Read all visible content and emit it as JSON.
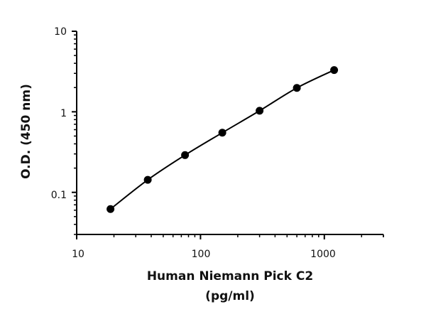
{
  "chart_data": {
    "type": "scatter",
    "x_scale": "log",
    "y_scale": "log",
    "xlim": [
      10,
      3000
    ],
    "ylim": [
      0.03,
      10
    ],
    "x_ticks": [
      "10",
      "100",
      "1000"
    ],
    "y_ticks": [
      "0.1",
      "1",
      "10"
    ],
    "xlabel_line1": "Human  Niemann  Pick C2",
    "xlabel_line2": "(pg/ml)",
    "ylabel": "O.D. (450 nm)",
    "grid": false,
    "series": [
      {
        "x": [
          18.75,
          37.5,
          75,
          150,
          300,
          600,
          1200
        ],
        "y": [
          0.062,
          0.143,
          0.29,
          0.55,
          1.03,
          1.98,
          3.3
        ],
        "fit_line": true
      }
    ],
    "colors": {
      "marker": "#000000",
      "line": "#000000",
      "axis": "#000000"
    }
  }
}
